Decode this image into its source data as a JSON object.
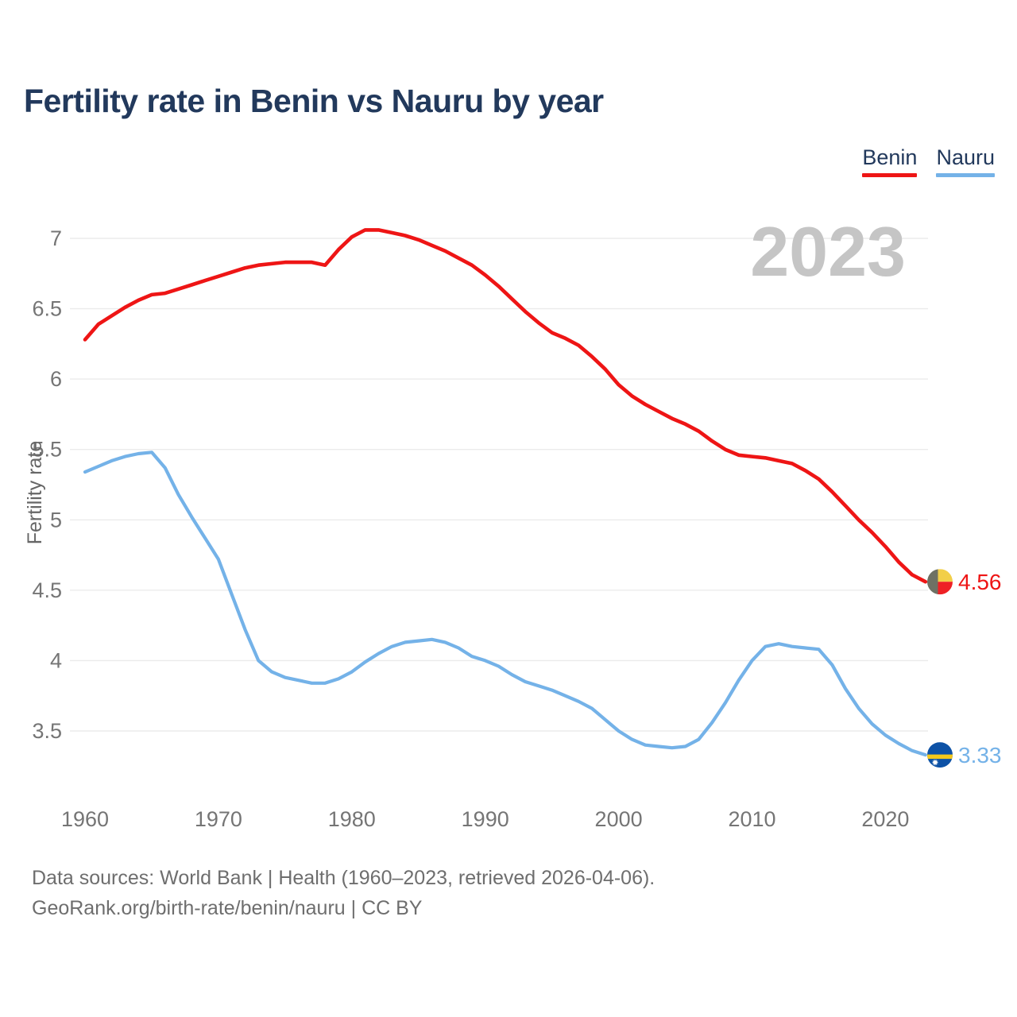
{
  "page": {
    "title": "Fertility rate in Benin vs Nauru by year"
  },
  "legend": [
    {
      "label": "Benin",
      "color": "#ee1515"
    },
    {
      "label": "Nauru",
      "color": "#74b2e8"
    }
  ],
  "watermark": "2023",
  "footer": {
    "line1": "Data sources: World Bank | Health (1960–2023, retrieved 2026-04-06).",
    "line2": "GeoRank.org/birth-rate/benin/nauru | CC BY"
  },
  "chart_data": {
    "type": "line",
    "title": "Fertility rate in Benin vs Nauru by year",
    "xlabel": "",
    "ylabel": "Fertility rate",
    "ylim": [
      3.2,
      7.25
    ],
    "yticks": [
      7,
      6.5,
      6,
      5.5,
      5,
      4.5,
      4,
      3.5
    ],
    "xticks": [
      1960,
      1970,
      1980,
      1990,
      2000,
      2010,
      2020
    ],
    "grid": "horizontal",
    "legend_position": "top-right",
    "watermark": "2023",
    "style": {
      "grid_color": "#ebebeb",
      "tick_color": "#757575",
      "axis_title_color": "#666666",
      "watermark_color": "#c5c5c5"
    },
    "x": [
      1960,
      1961,
      1962,
      1963,
      1964,
      1965,
      1966,
      1967,
      1968,
      1969,
      1970,
      1971,
      1972,
      1973,
      1974,
      1975,
      1976,
      1977,
      1978,
      1979,
      1980,
      1981,
      1982,
      1983,
      1984,
      1985,
      1986,
      1987,
      1988,
      1989,
      1990,
      1991,
      1992,
      1993,
      1994,
      1995,
      1996,
      1997,
      1998,
      1999,
      2000,
      2001,
      2002,
      2003,
      2004,
      2005,
      2006,
      2007,
      2008,
      2009,
      2010,
      2011,
      2012,
      2013,
      2014,
      2015,
      2016,
      2017,
      2018,
      2019,
      2020,
      2021,
      2022,
      2023
    ],
    "series": [
      {
        "name": "Benin",
        "color": "#ee1515",
        "width": 4.6,
        "end_label": "4.56",
        "end_value": 4.56,
        "flag": {
          "type": "benin",
          "green": "#6e7164",
          "yellow": "#f2cf49",
          "red": "#ee2125"
        },
        "values": [
          6.28,
          6.39,
          6.45,
          6.51,
          6.56,
          6.6,
          6.61,
          6.64,
          6.67,
          6.7,
          6.73,
          6.76,
          6.79,
          6.81,
          6.82,
          6.83,
          6.83,
          6.83,
          6.81,
          6.92,
          7.01,
          7.06,
          7.06,
          7.04,
          7.02,
          6.99,
          6.95,
          6.91,
          6.86,
          6.81,
          6.74,
          6.66,
          6.57,
          6.48,
          6.4,
          6.33,
          6.29,
          6.24,
          6.16,
          6.07,
          5.96,
          5.88,
          5.82,
          5.77,
          5.72,
          5.68,
          5.63,
          5.56,
          5.5,
          5.46,
          5.45,
          5.44,
          5.42,
          5.4,
          5.35,
          5.29,
          5.2,
          5.1,
          5.0,
          4.91,
          4.81,
          4.7,
          4.61,
          4.56
        ]
      },
      {
        "name": "Nauru",
        "color": "#74b2e8",
        "width": 4.2,
        "end_label": "3.33",
        "end_value": 3.33,
        "flag": {
          "type": "nauru",
          "blue": "#0d52a6",
          "yellow": "#f4c81c",
          "star": "#ffffff"
        },
        "values": [
          5.34,
          5.38,
          5.42,
          5.45,
          5.47,
          5.48,
          5.37,
          5.18,
          5.02,
          4.87,
          4.72,
          4.47,
          4.22,
          4.0,
          3.92,
          3.88,
          3.86,
          3.84,
          3.84,
          3.87,
          3.92,
          3.99,
          4.05,
          4.1,
          4.13,
          4.14,
          4.15,
          4.13,
          4.09,
          4.03,
          4.0,
          3.96,
          3.9,
          3.85,
          3.82,
          3.79,
          3.75,
          3.71,
          3.66,
          3.58,
          3.5,
          3.44,
          3.4,
          3.39,
          3.38,
          3.39,
          3.44,
          3.56,
          3.7,
          3.86,
          4.0,
          4.1,
          4.12,
          4.1,
          4.09,
          4.08,
          3.97,
          3.8,
          3.66,
          3.55,
          3.47,
          3.41,
          3.36,
          3.33
        ]
      }
    ]
  }
}
